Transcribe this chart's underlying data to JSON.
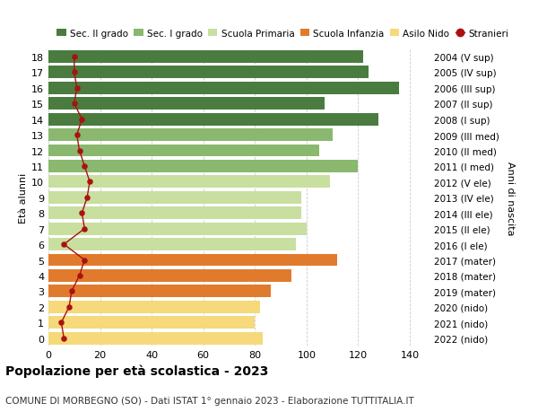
{
  "ages": [
    0,
    1,
    2,
    3,
    4,
    5,
    6,
    7,
    8,
    9,
    10,
    11,
    12,
    13,
    14,
    15,
    16,
    17,
    18
  ],
  "bar_values": [
    83,
    80,
    82,
    86,
    94,
    112,
    96,
    100,
    98,
    98,
    109,
    120,
    105,
    110,
    128,
    107,
    136,
    124,
    122
  ],
  "stranieri": [
    6,
    5,
    8,
    9,
    12,
    14,
    6,
    14,
    13,
    15,
    16,
    14,
    12,
    11,
    13,
    10,
    11,
    10,
    10
  ],
  "right_labels": [
    "2022 (nido)",
    "2021 (nido)",
    "2020 (nido)",
    "2019 (mater)",
    "2018 (mater)",
    "2017 (mater)",
    "2016 (I ele)",
    "2015 (II ele)",
    "2014 (III ele)",
    "2013 (IV ele)",
    "2012 (V ele)",
    "2011 (I med)",
    "2010 (II med)",
    "2009 (III med)",
    "2008 (I sup)",
    "2007 (II sup)",
    "2006 (III sup)",
    "2005 (IV sup)",
    "2004 (V sup)"
  ],
  "bar_colors": [
    "#f5d97a",
    "#f5d97a",
    "#f5d97a",
    "#e07b2e",
    "#e07b2e",
    "#e07b2e",
    "#c8dfa0",
    "#c8dfa0",
    "#c8dfa0",
    "#c8dfa0",
    "#c8dfa0",
    "#8ab86e",
    "#8ab86e",
    "#8ab86e",
    "#4a7c3f",
    "#4a7c3f",
    "#4a7c3f",
    "#4a7c3f",
    "#4a7c3f"
  ],
  "stranieri_color": "#aa1111",
  "title": "Popolazione per età scolastica - 2023",
  "subtitle": "COMUNE DI MORBEGNO (SO) - Dati ISTAT 1° gennaio 2023 - Elaborazione TUTTITALIA.IT",
  "ylabel_left": "Età alunni",
  "ylabel_right": "Anni di nascita",
  "xlim": [
    0,
    148
  ],
  "xticks": [
    0,
    20,
    40,
    60,
    80,
    100,
    120,
    140
  ],
  "legend_labels": [
    "Sec. II grado",
    "Sec. I grado",
    "Scuola Primaria",
    "Scuola Infanzia",
    "Asilo Nido",
    "Stranieri"
  ],
  "legend_colors": [
    "#4a7c3f",
    "#8ab86e",
    "#c8dfa0",
    "#e07b2e",
    "#f5d97a",
    "#aa1111"
  ],
  "bg_color": "#ffffff",
  "grid_color": "#cccccc"
}
